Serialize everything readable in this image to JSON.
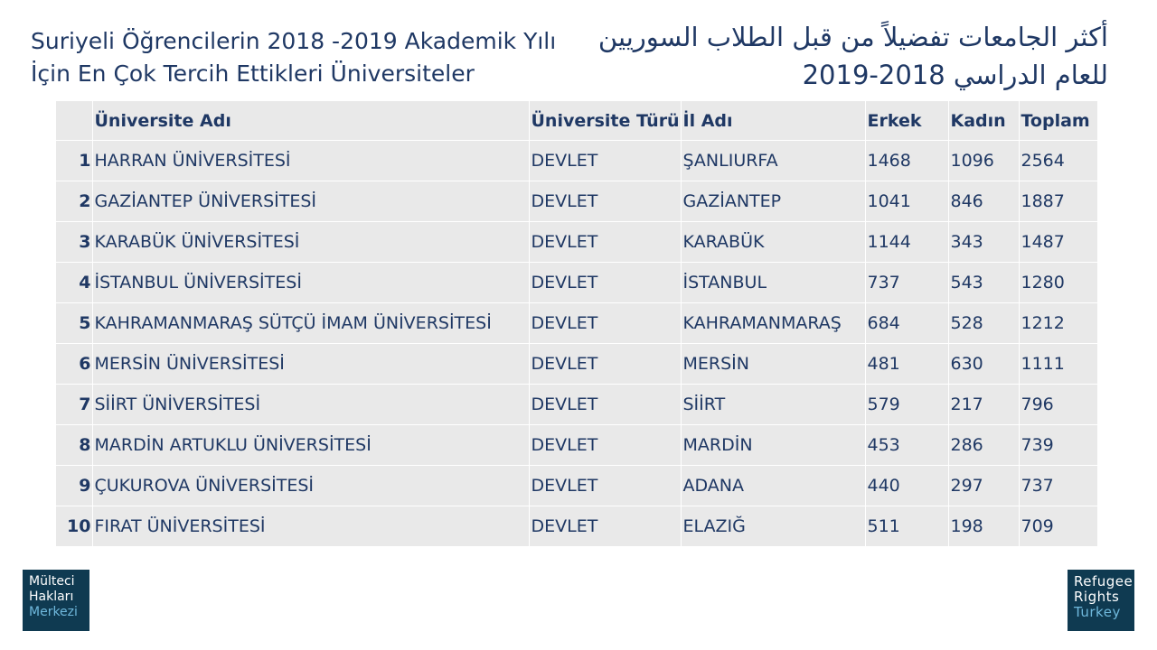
{
  "title_tr": "Suriyeli Öğrencilerin 2018 -2019 Akademik Yılı İçin En Çok Tercih Ettikleri Üniversiteler",
  "title_ar": "أكثر الجامعات تفضيلاً من قبل الطلاب السوريين للعام الدراسي 2018-2019",
  "table": {
    "headers": [
      "",
      "Üniversite Adı",
      "Üniversite Türü",
      "İl Adı",
      "Erkek",
      "Kadın",
      "Toplam"
    ],
    "rows": [
      [
        "1",
        "HARRAN ÜNİVERSİTESİ",
        "DEVLET",
        "ŞANLIURFA",
        "1468",
        "1096",
        "2564"
      ],
      [
        "2",
        "GAZİANTEP ÜNİVERSİTESİ",
        "DEVLET",
        "GAZİANTEP",
        "1041",
        "846",
        "1887"
      ],
      [
        "3",
        "KARABÜK ÜNİVERSİTESİ",
        "DEVLET",
        "KARABÜK",
        "1144",
        "343",
        "1487"
      ],
      [
        "4",
        "İSTANBUL ÜNİVERSİTESİ",
        "DEVLET",
        "İSTANBUL",
        "737",
        "543",
        "1280"
      ],
      [
        "5",
        "KAHRAMANMARAŞ SÜTÇÜ İMAM ÜNİVERSİTESİ",
        "DEVLET",
        "KAHRAMANMARAŞ",
        "684",
        "528",
        "1212"
      ],
      [
        "6",
        "MERSİN ÜNİVERSİTESİ",
        "DEVLET",
        "MERSİN",
        "481",
        "630",
        "1111"
      ],
      [
        "7",
        "SİİRT ÜNİVERSİTESİ",
        "DEVLET",
        "SİİRT",
        "579",
        "217",
        "796"
      ],
      [
        "8",
        "MARDİN ARTUKLU ÜNİVERSİTESİ",
        "DEVLET",
        "MARDİN",
        "453",
        "286",
        "739"
      ],
      [
        "9",
        "ÇUKUROVA ÜNİVERSİTESİ",
        "DEVLET",
        "ADANA",
        "440",
        "297",
        "737"
      ],
      [
        "10",
        "FIRAT ÜNİVERSİTESİ",
        "DEVLET",
        "ELAZIĞ",
        "511",
        "198",
        "709"
      ]
    ]
  },
  "logo_left": {
    "line1": "Mülteci",
    "line2": "Hakları",
    "line3": "Merkezi"
  },
  "logo_right": {
    "line1": "Refugee",
    "line2": "Rights",
    "line3": "Turkey"
  },
  "colors": {
    "text": "#1f3864",
    "table_bg": "#e9e9e9",
    "logo_bg": "#0f3a51",
    "logo_accent": "#6fb8dc"
  }
}
